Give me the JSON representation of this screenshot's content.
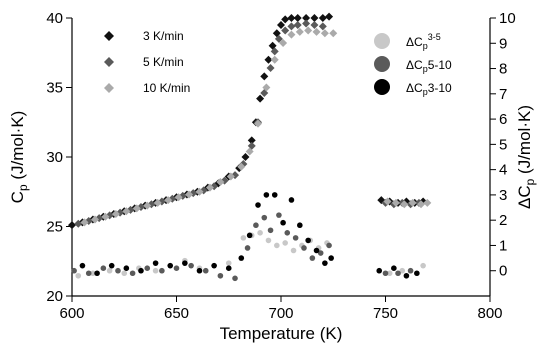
{
  "chart_data": {
    "type": "scatter",
    "xlabel": "Temperature (K)",
    "ylabel": {
      "base": "C",
      "sub": "p",
      "rest": " (J/mol·K)"
    },
    "y2label": {
      "base": "ΔC",
      "sub": "p",
      "rest": " (J/mol·K)"
    },
    "xlim": [
      600,
      800
    ],
    "ylim": [
      20,
      40
    ],
    "y2lim": [
      -1,
      10
    ],
    "xticks": [
      600,
      650,
      700,
      750,
      800
    ],
    "yticks": [
      20,
      25,
      30,
      35,
      40
    ],
    "y2ticks": [
      0,
      1,
      2,
      3,
      4,
      5,
      6,
      7,
      8,
      9,
      10
    ],
    "legend_left": [
      {
        "label": "3 K/min",
        "color": "#111111",
        "marker": "diamond"
      },
      {
        "label": "5 K/min",
        "color": "#5a5a5a",
        "marker": "diamond"
      },
      {
        "label": "10 K/min",
        "color": "#aaaaaa",
        "marker": "diamond"
      }
    ],
    "legend_right": [
      {
        "base": "ΔC",
        "sub": "p",
        "sup": "3-5",
        "color": "#c8c8c8",
        "marker": "circle"
      },
      {
        "base": "ΔC",
        "sub": "p",
        "rest": "5-10",
        "color": "#5a5a5a",
        "marker": "circle"
      },
      {
        "base": "ΔC",
        "sub": "p",
        "rest": "3-10",
        "color": "#000000",
        "marker": "circle"
      }
    ],
    "series": [
      {
        "axis": "left",
        "marker": "diamond",
        "color": "#111111",
        "x": [
          600,
          605,
          610,
          615,
          620,
          625,
          630,
          635,
          640,
          645,
          650,
          655,
          660,
          665,
          670,
          675,
          680,
          683,
          686,
          688,
          690,
          692,
          694,
          696,
          698,
          700,
          702,
          705,
          708,
          712,
          716,
          720,
          723
        ],
        "y": [
          25.1,
          25.3,
          25.5,
          25.7,
          25.9,
          26.1,
          26.3,
          26.5,
          26.7,
          26.9,
          27.1,
          27.3,
          27.5,
          27.8,
          28.1,
          28.6,
          29.2,
          30.0,
          31.2,
          32.5,
          34.2,
          35.8,
          37.0,
          38.0,
          38.9,
          39.5,
          39.9,
          40.0,
          40.0,
          40.0,
          40.0,
          40.0,
          40.1
        ]
      },
      {
        "axis": "left",
        "marker": "diamond",
        "color": "#5a5a5a",
        "x": [
          603,
          608,
          613,
          618,
          623,
          628,
          633,
          638,
          643,
          648,
          653,
          658,
          663,
          668,
          673,
          678,
          682,
          686,
          689,
          692,
          695,
          697,
          699,
          702,
          705,
          708,
          712,
          716,
          720
        ],
        "y": [
          25.2,
          25.4,
          25.6,
          25.8,
          26.0,
          26.2,
          26.4,
          26.6,
          26.8,
          27.0,
          27.2,
          27.4,
          27.6,
          27.9,
          28.3,
          28.7,
          29.5,
          30.8,
          32.5,
          34.6,
          36.4,
          37.6,
          38.5,
          39.1,
          39.4,
          39.5,
          39.6,
          39.5,
          39.4
        ]
      },
      {
        "axis": "left",
        "marker": "diamond",
        "color": "#aaaaaa",
        "x": [
          606,
          611,
          616,
          621,
          626,
          631,
          636,
          641,
          646,
          651,
          656,
          661,
          666,
          671,
          676,
          681,
          685,
          689,
          693,
          697,
          701,
          705,
          709,
          713,
          717,
          721,
          725
        ],
        "y": [
          25.3,
          25.5,
          25.7,
          25.9,
          26.1,
          26.3,
          26.5,
          26.7,
          26.9,
          27.1,
          27.3,
          27.5,
          27.8,
          28.2,
          28.6,
          29.3,
          30.4,
          32.4,
          35.0,
          37.0,
          38.2,
          38.8,
          39.0,
          39.1,
          39.0,
          38.9,
          38.9
        ]
      },
      {
        "axis": "left",
        "marker": "diamond",
        "color": "#111111",
        "x": [
          748,
          752,
          756,
          760,
          764,
          768
        ],
        "y": [
          26.9,
          26.8,
          26.7,
          26.8,
          26.7,
          26.8
        ]
      },
      {
        "axis": "left",
        "marker": "diamond",
        "color": "#5a5a5a",
        "x": [
          750,
          754,
          758,
          762,
          766
        ],
        "y": [
          26.7,
          26.6,
          26.7,
          26.6,
          26.7
        ]
      },
      {
        "axis": "left",
        "marker": "diamond",
        "color": "#aaaaaa",
        "x": [
          751,
          755,
          759,
          763,
          767,
          770
        ],
        "y": [
          26.8,
          26.7,
          26.6,
          26.7,
          26.6,
          26.7
        ]
      },
      {
        "axis": "right",
        "marker": "circle",
        "color": "#c8c8c8",
        "x": [
          603,
          610,
          618,
          625,
          632,
          640,
          647,
          654,
          661,
          668,
          675,
          682,
          686,
          690,
          694,
          698,
          702,
          706,
          710,
          714,
          718,
          722,
          752,
          758,
          768
        ],
        "y": [
          -0.2,
          -0.1,
          0.0,
          -0.1,
          0.1,
          0.0,
          0.2,
          0.4,
          0.1,
          0.2,
          0.3,
          1.3,
          1.4,
          1.5,
          1.2,
          1.0,
          1.1,
          0.8,
          1.0,
          1.2,
          0.9,
          1.1,
          -0.1,
          0.0,
          0.2
        ]
      },
      {
        "axis": "right",
        "marker": "circle",
        "color": "#5a5a5a",
        "x": [
          601,
          608,
          615,
          622,
          629,
          636,
          643,
          650,
          657,
          664,
          671,
          678,
          684,
          688,
          692,
          695,
          699,
          703,
          707,
          711,
          715,
          719,
          723,
          750,
          756,
          762
        ],
        "y": [
          0.0,
          -0.1,
          0.1,
          0.0,
          -0.1,
          0.1,
          0.0,
          0.1,
          0.2,
          0.0,
          -0.2,
          -0.3,
          0.9,
          1.8,
          2.1,
          1.6,
          2.2,
          1.5,
          1.3,
          0.9,
          0.5,
          0.7,
          1.0,
          -0.1,
          -0.1,
          0.0
        ]
      },
      {
        "axis": "right",
        "marker": "circle",
        "color": "#000000",
        "x": [
          605,
          612,
          619,
          626,
          633,
          640,
          647,
          654,
          661,
          668,
          675,
          681,
          685,
          689,
          693,
          697,
          701,
          705,
          709,
          713,
          717,
          721,
          724,
          747,
          754,
          760,
          765
        ],
        "y": [
          0.2,
          -0.1,
          0.2,
          0.1,
          0.0,
          0.3,
          0.2,
          0.3,
          0.0,
          0.2,
          0.1,
          0.5,
          1.4,
          2.6,
          3.0,
          3.0,
          1.9,
          2.8,
          1.8,
          1.2,
          0.8,
          0.3,
          0.5,
          0.0,
          0.1,
          -0.2,
          -0.1
        ]
      }
    ]
  }
}
